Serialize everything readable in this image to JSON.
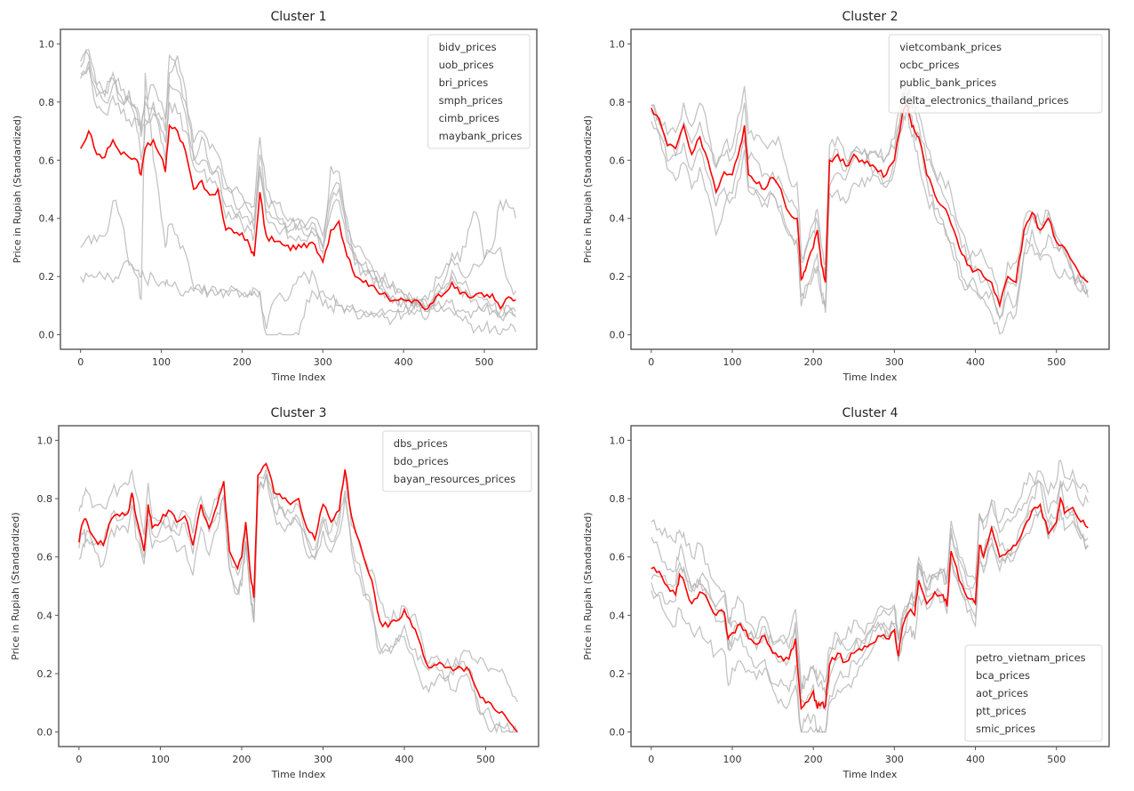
{
  "chart_data": [
    {
      "type": "line",
      "title": "Cluster 1",
      "xlabel": "Time Index",
      "ylabel": "Price in Rupiah (Standardized)",
      "xlim": [
        -25,
        565
      ],
      "ylim": [
        -0.05,
        1.05
      ],
      "xticks": [
        0,
        100,
        200,
        300,
        400,
        500
      ],
      "yticks": [
        0.0,
        0.2,
        0.4,
        0.6,
        0.8,
        1.0
      ],
      "legend": {
        "position": "top-right",
        "entries": [
          "bidv_prices",
          "uob_prices",
          "bri_prices",
          "smph_prices",
          "cimb_prices",
          "maybank_prices"
        ]
      },
      "x": [
        0,
        10,
        20,
        30,
        40,
        50,
        60,
        70,
        75,
        80,
        90,
        100,
        105,
        110,
        120,
        130,
        140,
        150,
        160,
        170,
        180,
        190,
        200,
        210,
        215,
        222,
        230,
        240,
        250,
        260,
        270,
        280,
        290,
        300,
        310,
        320,
        330,
        340,
        350,
        360,
        370,
        380,
        390,
        400,
        410,
        420,
        430,
        440,
        450,
        460,
        470,
        480,
        490,
        500,
        510,
        520,
        530,
        539
      ],
      "mean": [
        0.64,
        0.7,
        0.62,
        0.61,
        0.67,
        0.62,
        0.61,
        0.6,
        0.55,
        0.64,
        0.67,
        0.61,
        0.56,
        0.72,
        0.7,
        0.63,
        0.5,
        0.53,
        0.48,
        0.5,
        0.36,
        0.35,
        0.35,
        0.3,
        0.27,
        0.49,
        0.34,
        0.32,
        0.31,
        0.29,
        0.31,
        0.3,
        0.31,
        0.25,
        0.36,
        0.39,
        0.27,
        0.2,
        0.18,
        0.17,
        0.14,
        0.13,
        0.12,
        0.12,
        0.11,
        0.11,
        0.09,
        0.13,
        0.14,
        0.18,
        0.14,
        0.13,
        0.14,
        0.13,
        0.14,
        0.09,
        0.13,
        0.12
      ],
      "series": [
        {
          "name": "bidv_prices",
          "values": [
            0.92,
            0.98,
            0.85,
            0.8,
            0.86,
            0.82,
            0.8,
            0.76,
            0.7,
            0.8,
            0.78,
            0.74,
            0.7,
            0.96,
            0.9,
            0.8,
            0.66,
            0.7,
            0.64,
            0.62,
            0.52,
            0.5,
            0.48,
            0.45,
            0.44,
            0.68,
            0.5,
            0.46,
            0.42,
            0.4,
            0.4,
            0.38,
            0.4,
            0.34,
            0.48,
            0.52,
            0.4,
            0.3,
            0.28,
            0.24,
            0.2,
            0.18,
            0.16,
            0.14,
            0.13,
            0.12,
            0.1,
            0.14,
            0.16,
            0.22,
            0.18,
            0.16,
            0.14,
            0.12,
            0.1,
            0.06,
            0.1,
            0.08
          ]
        },
        {
          "name": "uob_prices",
          "values": [
            0.9,
            0.94,
            0.82,
            0.84,
            0.88,
            0.8,
            0.84,
            0.7,
            0.6,
            0.72,
            0.8,
            0.66,
            0.6,
            0.86,
            0.84,
            0.76,
            0.62,
            0.6,
            0.56,
            0.58,
            0.5,
            0.46,
            0.44,
            0.42,
            0.4,
            0.62,
            0.46,
            0.44,
            0.4,
            0.38,
            0.38,
            0.36,
            0.38,
            0.3,
            0.46,
            0.5,
            0.36,
            0.28,
            0.24,
            0.22,
            0.18,
            0.16,
            0.14,
            0.14,
            0.12,
            0.12,
            0.1,
            0.16,
            0.18,
            0.26,
            0.22,
            0.2,
            0.24,
            0.26,
            0.28,
            0.3,
            0.18,
            0.15
          ]
        },
        {
          "name": "bri_prices",
          "values": [
            0.88,
            0.92,
            0.78,
            0.76,
            0.82,
            0.76,
            0.74,
            0.74,
            0.68,
            0.74,
            0.76,
            0.7,
            0.66,
            0.8,
            0.76,
            0.7,
            0.58,
            0.56,
            0.54,
            0.5,
            0.44,
            0.42,
            0.4,
            0.38,
            0.36,
            0.58,
            0.42,
            0.4,
            0.38,
            0.36,
            0.36,
            0.34,
            0.36,
            0.3,
            0.42,
            0.46,
            0.32,
            0.26,
            0.22,
            0.2,
            0.16,
            0.14,
            0.12,
            0.12,
            0.11,
            0.1,
            0.08,
            0.12,
            0.14,
            0.2,
            0.16,
            0.14,
            0.12,
            0.1,
            0.08,
            0.06,
            0.08,
            0.06
          ]
        },
        {
          "name": "smph_prices",
          "values": [
            0.3,
            0.34,
            0.32,
            0.34,
            0.46,
            0.4,
            0.24,
            0.2,
            0.12,
            0.9,
            0.6,
            0.4,
            0.3,
            0.38,
            0.34,
            0.28,
            0.16,
            0.14,
            0.15,
            0.14,
            0.15,
            0.16,
            0.14,
            0.15,
            0.16,
            0.14,
            0.0,
            0.0,
            0.0,
            0.0,
            0.0,
            0.12,
            0.14,
            0.15,
            0.12,
            0.1,
            0.1,
            0.08,
            0.07,
            0.07,
            0.06,
            0.06,
            0.06,
            0.07,
            0.08,
            0.1,
            0.12,
            0.2,
            0.22,
            0.28,
            0.25,
            0.36,
            0.42,
            0.26,
            0.3,
            0.46,
            0.44,
            0.4
          ]
        },
        {
          "name": "cimb_prices",
          "values": [
            0.2,
            0.2,
            0.2,
            0.19,
            0.18,
            0.22,
            0.25,
            0.22,
            0.2,
            0.19,
            0.2,
            0.18,
            0.17,
            0.17,
            0.16,
            0.15,
            0.15,
            0.15,
            0.15,
            0.14,
            0.15,
            0.15,
            0.14,
            0.14,
            0.15,
            0.15,
            0.02,
            0.12,
            0.13,
            0.14,
            0.2,
            0.2,
            0.2,
            0.1,
            0.1,
            0.1,
            0.09,
            0.08,
            0.08,
            0.08,
            0.08,
            0.08,
            0.08,
            0.08,
            0.08,
            0.08,
            0.08,
            0.08,
            0.08,
            0.08,
            0.08,
            0.08,
            0.08,
            0.08,
            0.08,
            0.08,
            0.08,
            0.07
          ]
        },
        {
          "name": "maybank_prices",
          "values": [
            0.94,
            0.96,
            0.86,
            0.82,
            0.9,
            0.84,
            0.82,
            0.78,
            0.72,
            0.82,
            0.86,
            0.8,
            0.74,
            0.9,
            0.96,
            0.84,
            0.6,
            0.68,
            0.58,
            0.56,
            0.4,
            0.4,
            0.38,
            0.36,
            0.34,
            0.56,
            0.4,
            0.38,
            0.36,
            0.34,
            0.34,
            0.32,
            0.34,
            0.28,
            0.58,
            0.56,
            0.36,
            0.24,
            0.22,
            0.2,
            0.16,
            0.14,
            0.12,
            0.12,
            0.1,
            0.1,
            0.06,
            0.1,
            0.1,
            0.12,
            0.06,
            0.04,
            0.02,
            0.02,
            0.02,
            0.0,
            0.02,
            0.01
          ]
        }
      ]
    },
    {
      "type": "line",
      "title": "Cluster 2",
      "xlabel": "Time Index",
      "ylabel": "Price in Rupiah (Standardized)",
      "xlim": [
        -25,
        565
      ],
      "ylim": [
        -0.05,
        1.05
      ],
      "xticks": [
        0,
        100,
        200,
        300,
        400,
        500
      ],
      "yticks": [
        0.0,
        0.2,
        0.4,
        0.6,
        0.8,
        1.0
      ],
      "legend": {
        "position": "top-right",
        "entries": [
          "vietcombank_prices",
          "ocbc_prices",
          "public_bank_prices",
          "delta_electronics_thailand_prices"
        ]
      },
      "x": [
        0,
        10,
        20,
        30,
        40,
        50,
        60,
        70,
        80,
        90,
        100,
        110,
        115,
        120,
        130,
        140,
        150,
        160,
        170,
        180,
        185,
        190,
        200,
        205,
        210,
        215,
        220,
        230,
        240,
        250,
        260,
        270,
        280,
        290,
        300,
        310,
        315,
        320,
        325,
        330,
        340,
        350,
        360,
        370,
        380,
        390,
        400,
        410,
        420,
        430,
        440,
        450,
        460,
        470,
        480,
        490,
        500,
        510,
        520,
        530,
        539
      ],
      "mean": [
        0.78,
        0.74,
        0.65,
        0.64,
        0.72,
        0.62,
        0.68,
        0.6,
        0.49,
        0.56,
        0.55,
        0.65,
        0.72,
        0.55,
        0.52,
        0.5,
        0.54,
        0.5,
        0.42,
        0.4,
        0.19,
        0.22,
        0.3,
        0.36,
        0.24,
        0.18,
        0.6,
        0.62,
        0.58,
        0.62,
        0.6,
        0.58,
        0.56,
        0.55,
        0.6,
        0.76,
        0.79,
        0.74,
        0.7,
        0.68,
        0.55,
        0.48,
        0.44,
        0.38,
        0.3,
        0.24,
        0.22,
        0.2,
        0.18,
        0.1,
        0.2,
        0.18,
        0.36,
        0.42,
        0.36,
        0.4,
        0.32,
        0.3,
        0.25,
        0.2,
        0.18
      ]
    },
    {
      "type": "line",
      "title": "Cluster 3",
      "xlabel": "Time Index",
      "ylabel": "Price in Rupiah (Standardized)",
      "xlim": [
        -25,
        565
      ],
      "ylim": [
        -0.05,
        1.05
      ],
      "xticks": [
        0,
        100,
        200,
        300,
        400,
        500
      ],
      "yticks": [
        0.0,
        0.2,
        0.4,
        0.6,
        0.8,
        1.0
      ],
      "legend": {
        "position": "top-right",
        "entries": [
          "dbs_prices",
          "bdo_prices",
          "bayan_resources_prices"
        ]
      },
      "x": [
        0,
        5,
        10,
        20,
        30,
        40,
        50,
        60,
        65,
        70,
        80,
        85,
        90,
        100,
        110,
        120,
        130,
        140,
        150,
        160,
        170,
        178,
        185,
        195,
        200,
        205,
        210,
        215,
        220,
        230,
        240,
        250,
        260,
        270,
        280,
        290,
        300,
        310,
        320,
        327,
        335,
        350,
        360,
        370,
        380,
        390,
        400,
        410,
        420,
        430,
        440,
        450,
        460,
        470,
        480,
        490,
        500,
        510,
        520,
        530,
        539
      ],
      "mean": [
        0.65,
        0.72,
        0.72,
        0.66,
        0.64,
        0.73,
        0.74,
        0.75,
        0.82,
        0.74,
        0.62,
        0.78,
        0.7,
        0.72,
        0.76,
        0.72,
        0.74,
        0.64,
        0.78,
        0.7,
        0.78,
        0.86,
        0.62,
        0.56,
        0.6,
        0.72,
        0.56,
        0.46,
        0.88,
        0.92,
        0.82,
        0.8,
        0.78,
        0.8,
        0.7,
        0.66,
        0.78,
        0.72,
        0.76,
        0.9,
        0.74,
        0.6,
        0.52,
        0.38,
        0.36,
        0.38,
        0.42,
        0.36,
        0.3,
        0.22,
        0.23,
        0.22,
        0.21,
        0.22,
        0.21,
        0.14,
        0.1,
        0.08,
        0.07,
        0.03,
        0.0
      ]
    },
    {
      "type": "line",
      "title": "Cluster 4",
      "xlabel": "Time Index",
      "ylabel": "Price in Rupiah (Standardized)",
      "xlim": [
        -25,
        565
      ],
      "ylim": [
        -0.05,
        1.05
      ],
      "xticks": [
        0,
        100,
        200,
        300,
        400,
        500
      ],
      "yticks": [
        0.0,
        0.2,
        0.4,
        0.6,
        0.8,
        1.0
      ],
      "legend": {
        "position": "bottom-right",
        "entries": [
          "petro_vietnam_prices",
          "bca_prices",
          "aot_prices",
          "ptt_prices",
          "smic_prices"
        ]
      },
      "x": [
        0,
        10,
        20,
        30,
        35,
        40,
        50,
        60,
        70,
        80,
        90,
        95,
        100,
        110,
        120,
        130,
        140,
        150,
        160,
        170,
        178,
        185,
        190,
        200,
        205,
        210,
        215,
        220,
        230,
        240,
        250,
        260,
        270,
        280,
        290,
        300,
        305,
        310,
        320,
        325,
        330,
        340,
        350,
        360,
        365,
        370,
        380,
        390,
        400,
        405,
        410,
        420,
        430,
        440,
        450,
        460,
        470,
        480,
        490,
        500,
        505,
        510,
        520,
        530,
        539
      ],
      "mean": [
        0.56,
        0.55,
        0.5,
        0.47,
        0.54,
        0.52,
        0.44,
        0.48,
        0.45,
        0.4,
        0.41,
        0.32,
        0.34,
        0.37,
        0.32,
        0.3,
        0.33,
        0.27,
        0.26,
        0.25,
        0.32,
        0.08,
        0.1,
        0.14,
        0.08,
        0.1,
        0.09,
        0.23,
        0.27,
        0.24,
        0.27,
        0.28,
        0.3,
        0.33,
        0.32,
        0.35,
        0.26,
        0.36,
        0.42,
        0.4,
        0.52,
        0.44,
        0.48,
        0.47,
        0.43,
        0.62,
        0.52,
        0.46,
        0.44,
        0.64,
        0.6,
        0.7,
        0.6,
        0.62,
        0.64,
        0.7,
        0.76,
        0.78,
        0.68,
        0.72,
        0.8,
        0.75,
        0.77,
        0.72,
        0.7
      ]
    }
  ],
  "page": {
    "mean_line_color": "#ff0000",
    "member_line_color": "#b0b0b0"
  }
}
